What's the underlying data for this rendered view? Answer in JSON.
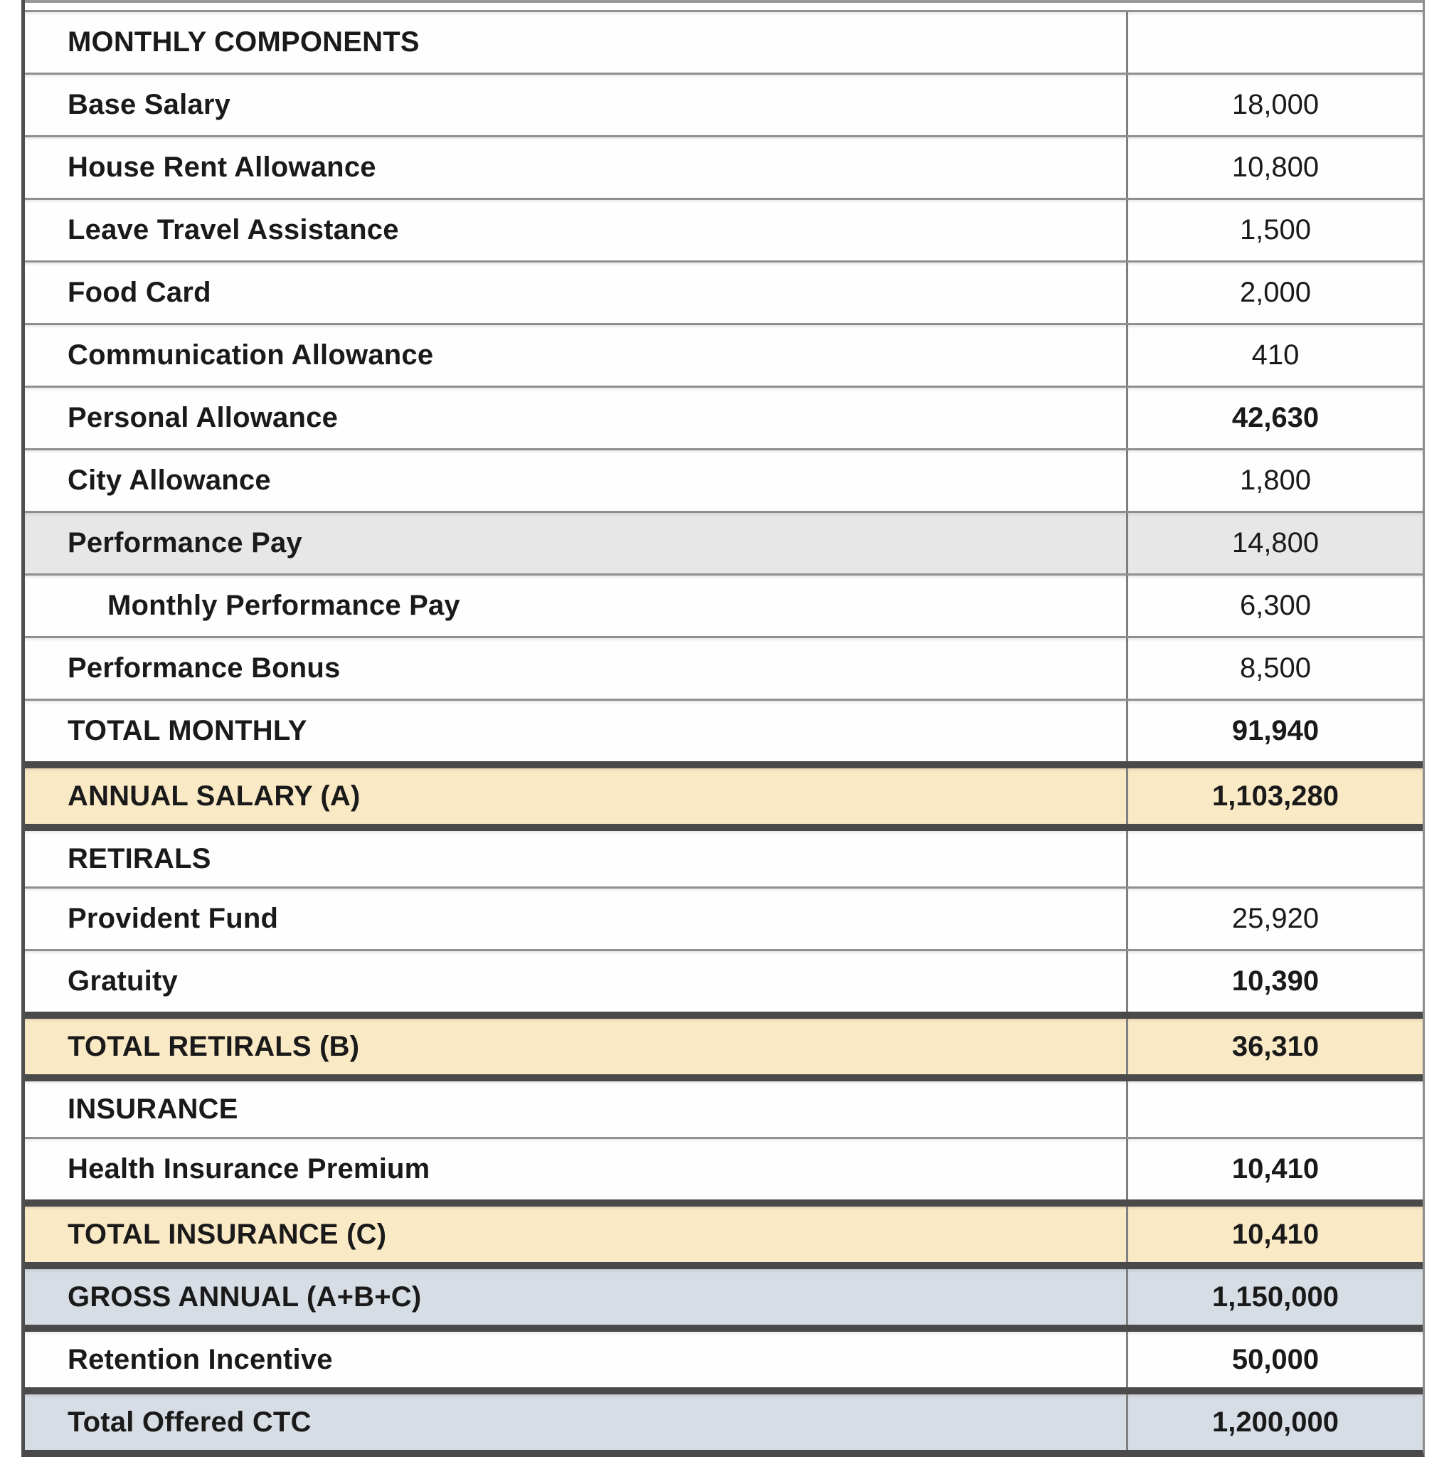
{
  "table": {
    "rows": [
      {
        "label": "MONTHLY COMPONENTS",
        "value": "",
        "style": "white",
        "indent": false,
        "value_bold": false,
        "thick_top": false
      },
      {
        "label": "Base Salary",
        "value": "18,000",
        "style": "white",
        "indent": false,
        "value_bold": false,
        "thick_top": false
      },
      {
        "label": "House Rent Allowance",
        "value": "10,800",
        "style": "white",
        "indent": false,
        "value_bold": false,
        "thick_top": false
      },
      {
        "label": "Leave Travel Assistance",
        "value": "1,500",
        "style": "white",
        "indent": false,
        "value_bold": false,
        "thick_top": false
      },
      {
        "label": "Food Card",
        "value": "2,000",
        "style": "white",
        "indent": false,
        "value_bold": false,
        "thick_top": false
      },
      {
        "label": "Communication Allowance",
        "value": "410",
        "style": "white",
        "indent": false,
        "value_bold": false,
        "thick_top": false
      },
      {
        "label": "Personal Allowance",
        "value": "42,630",
        "style": "white",
        "indent": false,
        "value_bold": true,
        "thick_top": false
      },
      {
        "label": "City Allowance",
        "value": "1,800",
        "style": "white",
        "indent": false,
        "value_bold": false,
        "thick_top": false
      },
      {
        "label": "Performance Pay",
        "value": "14,800",
        "style": "gray",
        "indent": false,
        "value_bold": false,
        "thick_top": false
      },
      {
        "label": "Monthly Performance Pay",
        "value": "6,300",
        "style": "white",
        "indent": true,
        "value_bold": false,
        "thick_top": false
      },
      {
        "label": "Performance Bonus",
        "value": "8,500",
        "style": "white",
        "indent": false,
        "value_bold": false,
        "thick_top": false
      },
      {
        "label": "TOTAL MONTHLY",
        "value": "91,940",
        "style": "white",
        "indent": false,
        "value_bold": true,
        "thick_top": false
      },
      {
        "label": "ANNUAL SALARY (A)",
        "value": "1,103,280",
        "style": "cream",
        "indent": false,
        "value_bold": true,
        "thick_top": true
      },
      {
        "label": "RETIRALS",
        "value": "",
        "style": "white",
        "indent": false,
        "value_bold": false,
        "thick_top": true
      },
      {
        "label": "Provident Fund",
        "value": "25,920",
        "style": "white",
        "indent": false,
        "value_bold": false,
        "thick_top": false
      },
      {
        "label": "Gratuity",
        "value": "10,390",
        "style": "white",
        "indent": false,
        "value_bold": true,
        "thick_top": false
      },
      {
        "label": "TOTAL RETIRALS (B)",
        "value": "36,310",
        "style": "cream",
        "indent": false,
        "value_bold": true,
        "thick_top": true
      },
      {
        "label": "INSURANCE",
        "value": "",
        "style": "white",
        "indent": false,
        "value_bold": false,
        "thick_top": true
      },
      {
        "label": "Health Insurance Premium",
        "value": "10,410",
        "style": "white",
        "indent": false,
        "value_bold": true,
        "thick_top": false
      },
      {
        "label": "TOTAL INSURANCE (C)",
        "value": "10,410",
        "style": "cream",
        "indent": false,
        "value_bold": true,
        "thick_top": true
      },
      {
        "label": "GROSS ANNUAL (A+B+C)",
        "value": "1,150,000",
        "style": "bluegray",
        "indent": false,
        "value_bold": true,
        "thick_top": true
      },
      {
        "label": "Retention Incentive",
        "value": "50,000",
        "style": "white",
        "indent": false,
        "value_bold": true,
        "thick_top": true
      },
      {
        "label": "Total Offered CTC",
        "value": "1,200,000",
        "style": "bluegray",
        "indent": false,
        "value_bold": true,
        "thick_top": true
      }
    ],
    "colors": {
      "cream_row": "#FAE9C5",
      "gray_row": "#E7E7E7",
      "bluegray_row": "#D7DDE5",
      "thick_border": "#4A4A4A",
      "thin_border": "#8F8F8F",
      "text": "#1A1A1A"
    }
  }
}
